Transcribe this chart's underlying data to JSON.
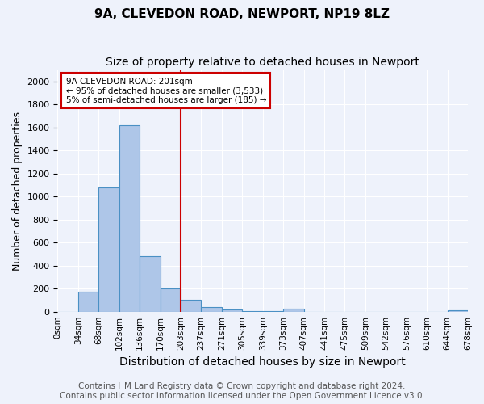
{
  "title1": "9A, CLEVEDON ROAD, NEWPORT, NP19 8LZ",
  "title2": "Size of property relative to detached houses in Newport",
  "xlabel": "Distribution of detached houses by size in Newport",
  "ylabel": "Number of detached properties",
  "annotation_title": "9A CLEVEDON ROAD: 201sqm",
  "annotation_line1": "← 95% of detached houses are smaller (3,533)",
  "annotation_line2": "5% of semi-detached houses are larger (185) →",
  "footer1": "Contains HM Land Registry data © Crown copyright and database right 2024.",
  "footer2": "Contains public sector information licensed under the Open Government Licence v3.0.",
  "tick_labels": [
    "0sqm",
    "34sqm",
    "68sqm",
    "102sqm",
    "136sqm",
    "170sqm",
    "203sqm",
    "237sqm",
    "271sqm",
    "305sqm",
    "339sqm",
    "373sqm",
    "407sqm",
    "441sqm",
    "475sqm",
    "509sqm",
    "542sqm",
    "576sqm",
    "610sqm",
    "644sqm",
    "678sqm"
  ],
  "bar_values": [
    0,
    170,
    1080,
    1620,
    480,
    200,
    100,
    40,
    18,
    5,
    5,
    25,
    0,
    0,
    0,
    0,
    0,
    0,
    0,
    15
  ],
  "bar_color": "#aec6e8",
  "bar_edge_color": "#4a90c4",
  "vline_x": 6,
  "vline_color": "#cc0000",
  "ylim": [
    0,
    2100
  ],
  "yticks": [
    0,
    200,
    400,
    600,
    800,
    1000,
    1200,
    1400,
    1600,
    1800,
    2000
  ],
  "bg_color": "#eef2fb",
  "plot_bg_color": "#eef2fb",
  "grid_color": "#ffffff",
  "title1_fontsize": 11,
  "title2_fontsize": 10,
  "xlabel_fontsize": 10,
  "ylabel_fontsize": 9,
  "footer_fontsize": 7.5
}
